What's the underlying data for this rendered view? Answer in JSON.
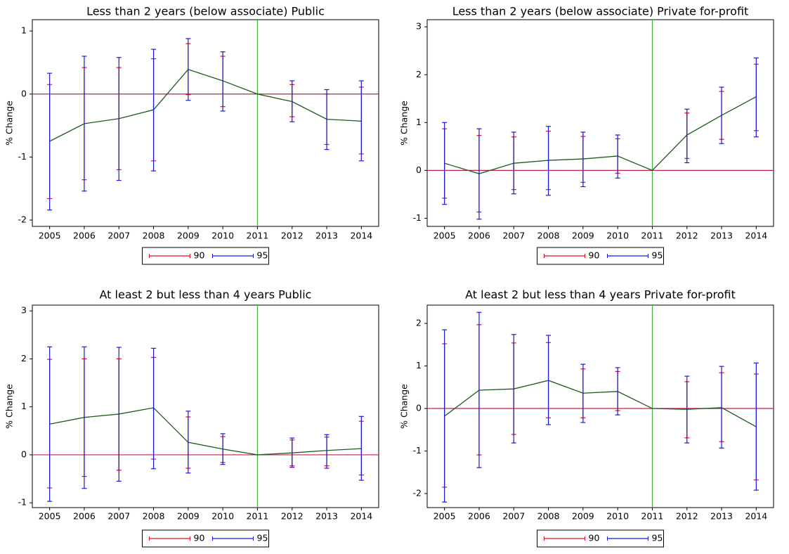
{
  "chart_data": [
    {
      "type": "errorbar_line",
      "title": "Less than 2 years (below associate) Public",
      "ylabel": "% Change",
      "x": [
        2005,
        2006,
        2007,
        2008,
        2009,
        2010,
        2011,
        2012,
        2013,
        2014
      ],
      "xlim": [
        2004.5,
        2014.5
      ],
      "xticks": [
        2005,
        2006,
        2007,
        2008,
        2009,
        2010,
        2011,
        2012,
        2013,
        2014
      ],
      "ylim": [
        -2.1,
        1.18
      ],
      "yticks": [
        -2,
        -1,
        0,
        1
      ],
      "hline": 0,
      "hline_color": "#c0204a",
      "vline": 2011,
      "vline_color": "#3cb03c",
      "estimate": {
        "color": "#1e5a1e",
        "values": [
          -0.75,
          -0.47,
          -0.39,
          -0.25,
          0.39,
          0.21,
          0,
          -0.12,
          -0.4,
          -0.43
        ]
      },
      "intervals": [
        {
          "name": "90",
          "color": "#e01020",
          "low": [
            -1.66,
            -1.36,
            -1.2,
            -1.06,
            -0.01,
            -0.2,
            null,
            -0.36,
            -0.8,
            -0.95
          ],
          "high": [
            0.15,
            0.42,
            0.42,
            0.56,
            0.8,
            0.6,
            null,
            0.15,
            0.0,
            0.11
          ]
        },
        {
          "name": "95",
          "color": "#1818e0",
          "low": [
            -1.84,
            -1.54,
            -1.37,
            -1.22,
            -0.1,
            -0.27,
            null,
            -0.44,
            -0.88,
            -1.06
          ],
          "high": [
            0.33,
            0.6,
            0.58,
            0.71,
            0.88,
            0.67,
            null,
            0.21,
            0.07,
            0.21
          ]
        }
      ]
    },
    {
      "type": "errorbar_line",
      "title": "Less than 2 years (below associate) Private for-profit",
      "ylabel": "% Change",
      "x": [
        2005,
        2006,
        2007,
        2008,
        2009,
        2010,
        2011,
        2012,
        2013,
        2014
      ],
      "xlim": [
        2004.5,
        2014.5
      ],
      "xticks": [
        2005,
        2006,
        2007,
        2008,
        2009,
        2010,
        2011,
        2012,
        2013,
        2014
      ],
      "ylim": [
        -1.17,
        3.15
      ],
      "yticks": [
        -1,
        0,
        1,
        2,
        3
      ],
      "hline": 0,
      "hline_color": "#c0204a",
      "vline": 2011,
      "vline_color": "#3cb03c",
      "estimate": {
        "color": "#1e5a1e",
        "values": [
          0.15,
          -0.07,
          0.15,
          0.21,
          0.24,
          0.3,
          0,
          0.74,
          1.15,
          1.54
        ]
      },
      "intervals": [
        {
          "name": "90",
          "color": "#e01020",
          "low": [
            -0.58,
            -0.87,
            -0.4,
            -0.4,
            -0.25,
            -0.06,
            null,
            0.25,
            0.65,
            0.83
          ],
          "high": [
            0.87,
            0.73,
            0.7,
            0.82,
            0.71,
            0.66,
            null,
            1.2,
            1.65,
            2.22
          ]
        },
        {
          "name": "95",
          "color": "#1818e0",
          "low": [
            -0.71,
            -1.02,
            -0.49,
            -0.52,
            -0.34,
            -0.16,
            null,
            0.16,
            0.56,
            0.7
          ],
          "high": [
            1.0,
            0.87,
            0.8,
            0.92,
            0.8,
            0.74,
            null,
            1.28,
            1.74,
            2.35
          ]
        }
      ]
    },
    {
      "type": "errorbar_line",
      "title": "At least 2 but less than 4 years Public",
      "ylabel": "% Change",
      "x": [
        2005,
        2006,
        2007,
        2008,
        2009,
        2010,
        2011,
        2012,
        2013,
        2014
      ],
      "xlim": [
        2004.5,
        2014.5
      ],
      "xticks": [
        2005,
        2006,
        2007,
        2008,
        2009,
        2010,
        2011,
        2012,
        2013,
        2014
      ],
      "ylim": [
        -1.1,
        3.12
      ],
      "yticks": [
        -1,
        0,
        1,
        2,
        3
      ],
      "hline": 0,
      "hline_color": "#c0204a",
      "vline": 2011,
      "vline_color": "#3cb03c",
      "estimate": {
        "color": "#1e5a1e",
        "values": [
          0.64,
          0.78,
          0.85,
          0.98,
          0.26,
          0.12,
          0,
          0.04,
          0.09,
          0.13
        ]
      },
      "intervals": [
        {
          "name": "90",
          "color": "#e01020",
          "low": [
            -0.69,
            -0.45,
            -0.32,
            -0.09,
            -0.28,
            -0.16,
            null,
            -0.23,
            -0.23,
            -0.42
          ],
          "high": [
            1.99,
            2.0,
            2.0,
            2.03,
            0.79,
            0.38,
            null,
            0.31,
            0.37,
            0.7
          ]
        },
        {
          "name": "95",
          "color": "#1818e0",
          "low": [
            -0.97,
            -0.7,
            -0.55,
            -0.29,
            -0.38,
            -0.2,
            null,
            -0.26,
            -0.28,
            -0.53
          ],
          "high": [
            2.25,
            2.25,
            2.24,
            2.22,
            0.91,
            0.44,
            null,
            0.35,
            0.42,
            0.8
          ]
        }
      ]
    },
    {
      "type": "errorbar_line",
      "title": "At least 2 but less than 4 years Private for-profit",
      "ylabel": "% Change",
      "x": [
        2005,
        2006,
        2007,
        2008,
        2009,
        2010,
        2011,
        2012,
        2013,
        2014
      ],
      "xlim": [
        2004.5,
        2014.5
      ],
      "xticks": [
        2005,
        2006,
        2007,
        2008,
        2009,
        2010,
        2011,
        2012,
        2013,
        2014
      ],
      "ylim": [
        -2.33,
        2.43
      ],
      "yticks": [
        -2,
        -1,
        0,
        1,
        2
      ],
      "hline": 0,
      "hline_color": "#c0204a",
      "vline": 2011,
      "vline_color": "#3cb03c",
      "estimate": {
        "color": "#1e5a1e",
        "values": [
          -0.18,
          0.43,
          0.46,
          0.66,
          0.36,
          0.4,
          0,
          -0.02,
          0.02,
          -0.43
        ]
      },
      "intervals": [
        {
          "name": "90",
          "color": "#e01020",
          "low": [
            -1.85,
            -1.09,
            -0.61,
            -0.22,
            -0.22,
            -0.05,
            null,
            -0.69,
            -0.78,
            -1.68
          ],
          "high": [
            1.52,
            1.97,
            1.54,
            1.55,
            0.93,
            0.87,
            null,
            0.63,
            0.84,
            0.81
          ]
        },
        {
          "name": "95",
          "color": "#1818e0",
          "low": [
            -2.2,
            -1.39,
            -0.81,
            -0.38,
            -0.33,
            -0.15,
            null,
            -0.81,
            -0.93,
            -1.92
          ],
          "high": [
            1.85,
            2.26,
            1.74,
            1.72,
            1.04,
            0.96,
            null,
            0.76,
            0.99,
            1.07
          ]
        }
      ]
    }
  ]
}
